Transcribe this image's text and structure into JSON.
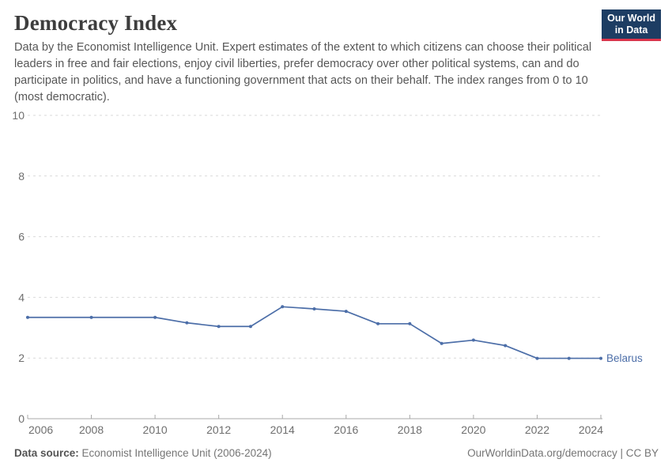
{
  "header": {
    "title": "Democracy Index",
    "subtitle": "Data by the Economist Intelligence Unit. Expert estimates of the extent to which citizens can choose their political leaders in free and fair elections, enjoy civil liberties, prefer democracy over other political systems, can and do participate in politics, and have a functioning government that acts on their behalf. The index ranges from 0 to 10 (most democratic).",
    "logo": {
      "line1": "Our World",
      "line2": "in Data",
      "bg_color": "#1d3d63",
      "accent_color": "#dc354c"
    }
  },
  "chart_data": {
    "type": "line",
    "title": "Democracy Index",
    "xlabel": "",
    "ylabel": "",
    "xlim": [
      2006,
      2024
    ],
    "ylim": [
      0,
      10
    ],
    "x_ticks": [
      2006,
      2008,
      2010,
      2012,
      2014,
      2016,
      2018,
      2020,
      2022,
      2024
    ],
    "y_ticks": [
      0,
      2,
      4,
      6,
      8,
      10
    ],
    "grid": "horizontal-dashed",
    "legend_position": "end-of-line-label",
    "colors": {
      "gridline": "#d9d9d9",
      "axis": "#a8a8a8",
      "tick_label": "#6f6f6f"
    },
    "series": [
      {
        "name": "Belarus",
        "color": "#4C6EA8",
        "x": [
          2006,
          2008,
          2010,
          2011,
          2012,
          2013,
          2014,
          2015,
          2016,
          2017,
          2018,
          2019,
          2020,
          2021,
          2022,
          2023,
          2024
        ],
        "values": [
          3.34,
          3.34,
          3.34,
          3.16,
          3.04,
          3.04,
          3.69,
          3.62,
          3.54,
          3.13,
          3.13,
          2.48,
          2.59,
          2.41,
          1.99,
          1.99,
          1.99
        ]
      }
    ]
  },
  "footer": {
    "source_label": "Data source:",
    "source_value": "Economist Intelligence Unit (2006-2024)",
    "link": "OurWorldinData.org/democracy | CC BY"
  }
}
